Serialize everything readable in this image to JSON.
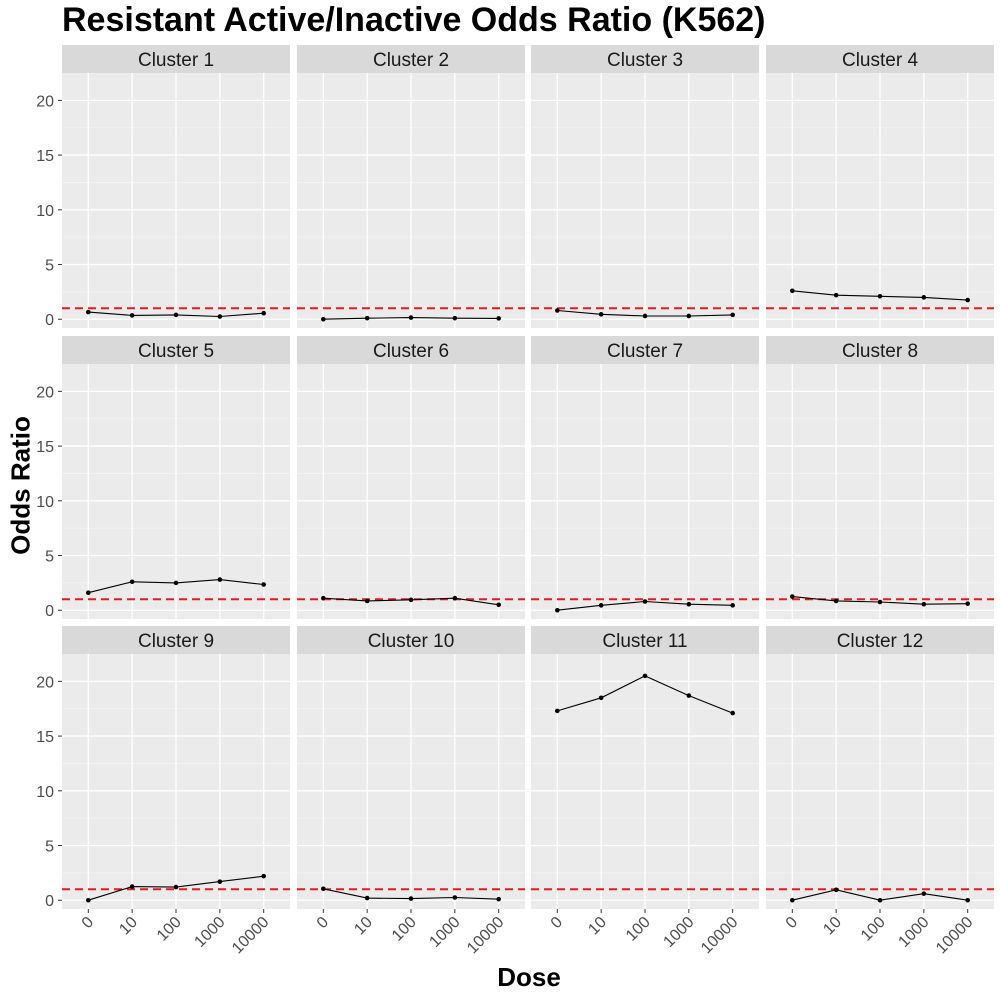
{
  "title": "Resistant Active/Inactive Odds Ratio (K562)",
  "colors": {
    "panel_bg": "#ebebeb",
    "strip_bg": "#d9d9d9",
    "grid_major": "#ffffff",
    "grid_minor": "#f4f4f4",
    "line": "#000000",
    "reference_line": "#e41a1c"
  },
  "chart_data": {
    "type": "line",
    "title": "Resistant Active/Inactive Odds Ratio (K562)",
    "xlabel": "Dose",
    "ylabel": "Odds Ratio",
    "x_categories": [
      "0",
      "10",
      "100",
      "1000",
      "10000"
    ],
    "ylim": [
      -0.8,
      22.5
    ],
    "y_ticks": [
      0,
      5,
      10,
      15,
      20
    ],
    "reference_line": {
      "y": 1,
      "style": "dashed",
      "color": "#e41a1c"
    },
    "grid": true,
    "facets": [
      {
        "name": "Cluster 1",
        "values": [
          0.65,
          0.35,
          0.4,
          0.25,
          0.55
        ]
      },
      {
        "name": "Cluster 2",
        "values": [
          0.0,
          0.1,
          0.15,
          0.1,
          0.08
        ]
      },
      {
        "name": "Cluster 3",
        "values": [
          0.8,
          0.45,
          0.3,
          0.3,
          0.4
        ]
      },
      {
        "name": "Cluster 4",
        "values": [
          2.6,
          2.2,
          2.1,
          2.0,
          1.75
        ]
      },
      {
        "name": "Cluster 5",
        "values": [
          1.6,
          2.6,
          2.5,
          2.8,
          2.35
        ]
      },
      {
        "name": "Cluster 6",
        "values": [
          1.1,
          0.85,
          0.95,
          1.1,
          0.5
        ]
      },
      {
        "name": "Cluster 7",
        "values": [
          0.0,
          0.45,
          0.8,
          0.55,
          0.45
        ]
      },
      {
        "name": "Cluster 8",
        "values": [
          1.25,
          0.85,
          0.75,
          0.55,
          0.6
        ]
      },
      {
        "name": "Cluster 9",
        "values": [
          0.0,
          1.25,
          1.2,
          1.7,
          2.2
        ]
      },
      {
        "name": "Cluster 10",
        "values": [
          1.05,
          0.2,
          0.15,
          0.25,
          0.1
        ]
      },
      {
        "name": "Cluster 11",
        "values": [
          17.3,
          18.5,
          20.5,
          18.7,
          17.1
        ]
      },
      {
        "name": "Cluster 12",
        "values": [
          0.0,
          0.95,
          0.0,
          0.6,
          0.0
        ]
      }
    ]
  }
}
